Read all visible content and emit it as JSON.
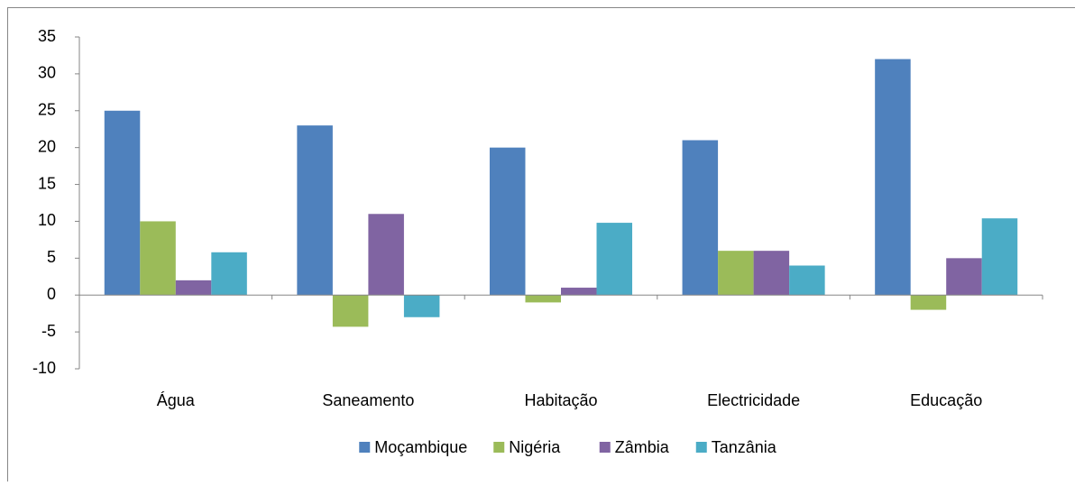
{
  "chart_data": {
    "type": "bar",
    "categories": [
      "Água",
      "Saneamento",
      "Habitação",
      "Electricidade",
      "Educação"
    ],
    "series": [
      {
        "name": "Moçambique",
        "color": "#4f81bd",
        "values": [
          25,
          23,
          20,
          21,
          32
        ]
      },
      {
        "name": "Nigéria",
        "color": "#9bbb59",
        "values": [
          10,
          -4.3,
          -1,
          6,
          -2
        ]
      },
      {
        "name": "Zâmbia",
        "color": "#8064a2",
        "values": [
          2,
          11,
          1,
          6,
          5
        ]
      },
      {
        "name": "Tanzânia",
        "color": "#4bacc6",
        "values": [
          5.8,
          -3,
          9.8,
          4,
          10.4
        ]
      }
    ],
    "ylim": [
      -10,
      35
    ],
    "yticks": [
      -10,
      -5,
      0,
      5,
      10,
      15,
      20,
      25,
      30,
      35
    ],
    "grid": false,
    "legend": "bottom"
  }
}
